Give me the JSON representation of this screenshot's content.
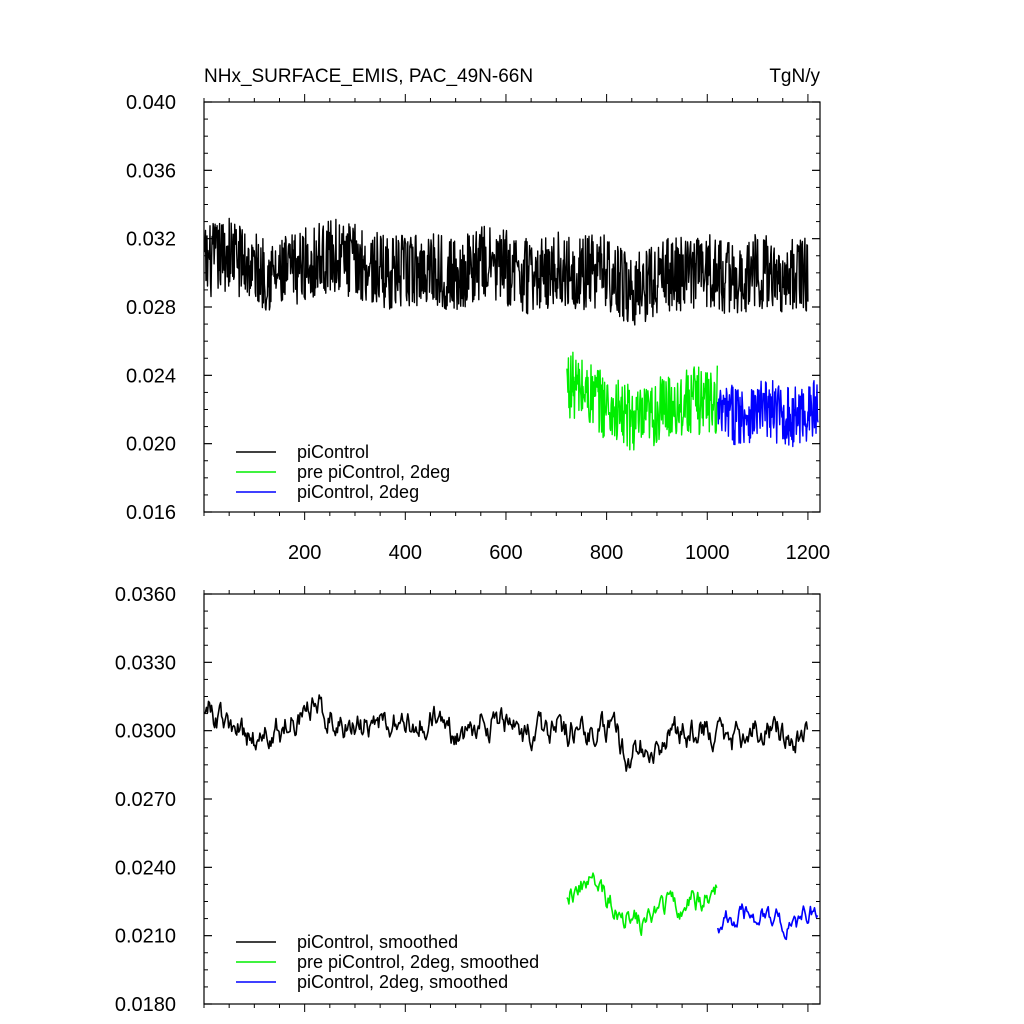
{
  "chart_data": [
    {
      "type": "line",
      "title_left": "NHx_SURFACE_EMIS, PAC_49N-66N",
      "title_right": "TgN/y",
      "xlim": [
        0,
        1224
      ],
      "ylim": [
        0.016,
        0.04
      ],
      "xticks": [
        200,
        400,
        600,
        800,
        1000,
        1200
      ],
      "xtick_labels": [
        "200",
        "400",
        "600",
        "800",
        "1000",
        "1200"
      ],
      "yticks": [
        0.016,
        0.02,
        0.024,
        0.028,
        0.032,
        0.036,
        0.04
      ],
      "ytick_labels": [
        "0.016",
        "0.020",
        "0.024",
        "0.028",
        "0.032",
        "0.036",
        "0.040"
      ],
      "legend_position": "bottom-left",
      "series": [
        {
          "name": "piControl",
          "color": "#000000",
          "x_start": 1,
          "x_end": 1200,
          "step": 50,
          "x": [
            1,
            50,
            100,
            150,
            200,
            250,
            300,
            350,
            400,
            450,
            500,
            550,
            600,
            650,
            700,
            750,
            800,
            850,
            900,
            950,
            1000,
            1050,
            1100,
            1150,
            1200
          ],
          "values": [
            0.0305,
            0.0312,
            0.0302,
            0.0298,
            0.0305,
            0.031,
            0.0307,
            0.0301,
            0.03,
            0.0304,
            0.0298,
            0.0306,
            0.0303,
            0.0297,
            0.0302,
            0.03,
            0.0301,
            0.0289,
            0.0297,
            0.03,
            0.0302,
            0.0296,
            0.0301,
            0.0298,
            0.0299
          ],
          "noise": 0.0022
        },
        {
          "name": "pre piControl, 2deg",
          "color": "#00ee00",
          "x_start": 721,
          "x_end": 1020,
          "step": 50,
          "x": [
            721,
            770,
            820,
            870,
            920,
            970,
            1020
          ],
          "values": [
            0.0236,
            0.0228,
            0.0218,
            0.0212,
            0.0222,
            0.0225,
            0.0226
          ],
          "noise": 0.002
        },
        {
          "name": "piControl, 2deg",
          "color": "#0000ff",
          "x_start": 1021,
          "x_end": 1220,
          "step": 50,
          "x": [
            1021,
            1070,
            1120,
            1170,
            1220
          ],
          "values": [
            0.0216,
            0.0218,
            0.022,
            0.0215,
            0.0221
          ],
          "noise": 0.0018
        }
      ]
    },
    {
      "type": "line",
      "xlim": [
        0,
        1224
      ],
      "ylim": [
        0.018,
        0.036
      ],
      "xticks": [
        200,
        400,
        600,
        800,
        1000,
        1200
      ],
      "yticks": [
        0.018,
        0.021,
        0.024,
        0.027,
        0.03,
        0.033,
        0.036
      ],
      "ytick_labels": [
        "0.0180",
        "0.0210",
        "0.0240",
        "0.0270",
        "0.0300",
        "0.0330",
        "0.0360"
      ],
      "legend_position": "bottom-left",
      "series": [
        {
          "name": "piControl, smoothed",
          "color": "#000000",
          "x_start": 1,
          "x_end": 1200,
          "step": 50,
          "x": [
            1,
            50,
            100,
            150,
            200,
            250,
            300,
            350,
            400,
            450,
            500,
            550,
            600,
            650,
            700,
            750,
            800,
            850,
            900,
            950,
            1000,
            1050,
            1100,
            1150,
            1200
          ],
          "values": [
            0.0312,
            0.03,
            0.0296,
            0.03,
            0.031,
            0.0308,
            0.03,
            0.0303,
            0.0302,
            0.0305,
            0.0298,
            0.0305,
            0.0302,
            0.0296,
            0.0301,
            0.03,
            0.0302,
            0.0288,
            0.0296,
            0.0299,
            0.0302,
            0.0296,
            0.0302,
            0.0298,
            0.0298
          ],
          "noise": 0.001
        },
        {
          "name": "pre piControl, 2deg, smoothed",
          "color": "#00ee00",
          "x_start": 721,
          "x_end": 1020,
          "step": 50,
          "x": [
            721,
            770,
            820,
            870,
            920,
            970,
            1020
          ],
          "values": [
            0.023,
            0.0233,
            0.0222,
            0.0215,
            0.0223,
            0.0225,
            0.0228
          ],
          "noise": 0.0008
        },
        {
          "name": "piControl, 2deg, smoothed",
          "color": "#0000ff",
          "x_start": 1021,
          "x_end": 1220,
          "step": 50,
          "x": [
            1021,
            1070,
            1120,
            1170,
            1220
          ],
          "values": [
            0.0216,
            0.0218,
            0.022,
            0.0212,
            0.0224
          ],
          "noise": 0.0007
        }
      ]
    }
  ]
}
